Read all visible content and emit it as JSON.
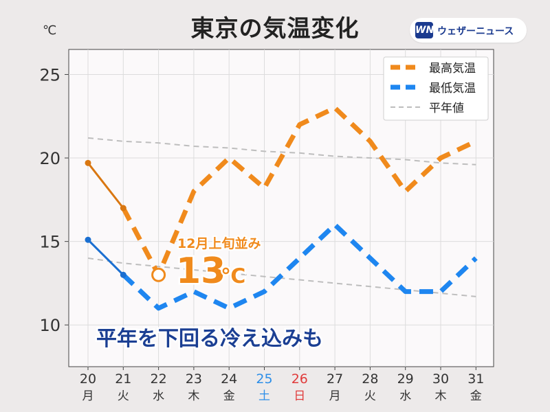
{
  "title": "東京の気温変化",
  "unit": "℃",
  "logo": {
    "mark": "WN",
    "text": "ウェザーニュース"
  },
  "colors": {
    "high": "#f08a1c",
    "high_observed": "#d97711",
    "low": "#1e86f0",
    "low_observed": "#1a6fd1",
    "normal": "#bdbdbd",
    "saturday": "#2c8ee8",
    "sunday": "#e03b3b",
    "annotation_text": "#1b3f93"
  },
  "chart_data": {
    "type": "line",
    "x": [
      "20",
      "21",
      "22",
      "23",
      "24",
      "25",
      "26",
      "27",
      "28",
      "29",
      "30",
      "31"
    ],
    "weekdays": [
      "月",
      "火",
      "水",
      "木",
      "金",
      "土",
      "日",
      "月",
      "火",
      "水",
      "木",
      "金"
    ],
    "ylim": [
      7.5,
      26.5
    ],
    "yticks": [
      10,
      15,
      20,
      25
    ],
    "grid": true,
    "legend_position": "top-right",
    "series": [
      {
        "name": "最高気温",
        "values": [
          19.7,
          17,
          13,
          18,
          20,
          18.2,
          22,
          23,
          21,
          18,
          20,
          21
        ],
        "observed_count": 2,
        "style": "dashed",
        "color": "#f08a1c"
      },
      {
        "name": "最低気温",
        "values": [
          15.1,
          13,
          11,
          12,
          11,
          12,
          14,
          16,
          14,
          12,
          12,
          14
        ],
        "observed_count": 2,
        "style": "dashed",
        "color": "#1e86f0"
      },
      {
        "name": "平年値",
        "values": [
          21.2,
          21.0,
          20.9,
          20.7,
          20.6,
          20.4,
          20.3,
          20.1,
          20.0,
          19.9,
          19.7,
          19.6
        ],
        "style": "dashed-thin",
        "color": "#bdbdbd"
      },
      {
        "name": "",
        "values": [
          14.0,
          13.7,
          13.5,
          13.3,
          13.1,
          12.9,
          12.7,
          12.5,
          12.3,
          12.1,
          11.9,
          11.7
        ],
        "style": "dashed-thin",
        "color": "#bdbdbd"
      }
    ],
    "highlight": {
      "index": 2,
      "value": 13
    },
    "annotations": {
      "callout_small": "12月上旬並み",
      "callout_big": "13",
      "callout_unit": "℃",
      "caption": "平年を下回る冷え込みも"
    }
  }
}
